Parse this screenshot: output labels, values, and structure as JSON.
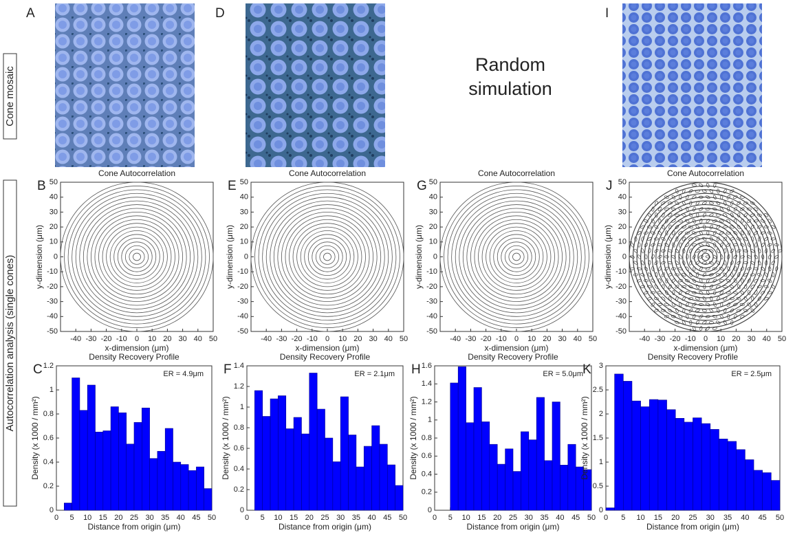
{
  "figure": {
    "row_labels": [
      "Cone mosaic",
      "Autocorrelation analysis (single cones)"
    ],
    "panels": [
      "A",
      "D",
      "I"
    ],
    "random_simulation": [
      "Random",
      "simulation"
    ]
  },
  "chart_data": [
    {
      "type": "autocorrelation",
      "panel_label": "B",
      "title": "Cone Autocorrelation",
      "xlabel": "x-dimension (μm)",
      "ylabel": "y-dimension (μm)",
      "xlim": [
        -50,
        50
      ],
      "ylim": [
        -50,
        50
      ],
      "xticks": [
        -40,
        -30,
        -20,
        -10,
        0,
        10,
        20,
        30,
        40,
        50
      ],
      "yticks": [
        -50,
        -40,
        -30,
        -20,
        -10,
        0,
        10,
        20,
        30,
        40,
        50
      ]
    },
    {
      "type": "autocorrelation",
      "panel_label": "E",
      "title": "Cone Autocorrelation",
      "xlabel": "x-dimension (μm)",
      "ylabel": "y-dimension (μm)",
      "xlim": [
        -50,
        50
      ],
      "ylim": [
        -50,
        50
      ],
      "xticks": [
        -40,
        -30,
        -20,
        -10,
        0,
        10,
        20,
        30,
        40,
        50
      ],
      "yticks": [
        -50,
        -40,
        -30,
        -20,
        -10,
        0,
        10,
        20,
        30,
        40,
        50
      ]
    },
    {
      "type": "autocorrelation",
      "panel_label": "G",
      "title": "Cone Autocorrelation",
      "xlabel": "x-dimension (μm)",
      "ylabel": "y-dimension (μm)",
      "xlim": [
        -50,
        50
      ],
      "ylim": [
        -50,
        50
      ],
      "xticks": [
        -40,
        -30,
        -20,
        -10,
        0,
        10,
        20,
        30,
        40,
        50
      ],
      "yticks": [
        -50,
        -40,
        -30,
        -20,
        -10,
        0,
        10,
        20,
        30,
        40,
        50
      ]
    },
    {
      "type": "autocorrelation",
      "panel_label": "J",
      "title": "Cone Autocorrelation",
      "xlabel": "x-dimension (μm)",
      "ylabel": "y-dimension (μm)",
      "xlim": [
        -50,
        50
      ],
      "ylim": [
        -50,
        50
      ],
      "xticks": [
        -40,
        -30,
        -20,
        -10,
        0,
        10,
        20,
        30,
        40,
        50
      ],
      "yticks": [
        -50,
        -40,
        -30,
        -20,
        -10,
        0,
        10,
        20,
        30,
        40,
        50
      ]
    },
    {
      "type": "histogram",
      "panel_label": "C",
      "title": "Density Recovery Profile",
      "annotation": "ER = 4.9μm",
      "xlabel": "Distance from origin (μm)",
      "ylabel": "Density (x 1000 / mm²)",
      "color": "#0000ff",
      "xlim": [
        0,
        50
      ],
      "ylim": [
        0,
        1.2
      ],
      "xticks": [
        0,
        5,
        10,
        15,
        20,
        25,
        30,
        35,
        40,
        45,
        50
      ],
      "yticks": [
        0,
        0.2,
        0.4,
        0.6,
        0.8,
        1,
        1.2
      ],
      "bins": [
        0,
        2.5,
        5,
        7.5,
        10,
        12.5,
        15,
        17.5,
        20,
        22.5,
        25,
        27.5,
        30,
        32.5,
        35,
        37.5,
        40,
        42.5,
        45,
        47.5,
        50
      ],
      "values": [
        0,
        0.06,
        1.1,
        0.83,
        1.04,
        0.65,
        0.66,
        0.86,
        0.81,
        0.55,
        0.73,
        0.85,
        0.43,
        0.49,
        0.68,
        0.4,
        0.38,
        0.33,
        0.36,
        0.18
      ]
    },
    {
      "type": "histogram",
      "panel_label": "F",
      "title": "Density Recovery Profile",
      "annotation": "ER = 2.1μm",
      "xlabel": "Distance from origin (μm)",
      "ylabel": "Density (x 1000 / mm²)",
      "color": "#0000ff",
      "xlim": [
        0,
        50
      ],
      "ylim": [
        0,
        1.4
      ],
      "xticks": [
        0,
        5,
        10,
        15,
        20,
        25,
        30,
        35,
        40,
        45,
        50
      ],
      "yticks": [
        0,
        0.2,
        0.4,
        0.6,
        0.8,
        1,
        1.2,
        1.4
      ],
      "bins": [
        0,
        2.5,
        5,
        7.5,
        10,
        12.5,
        15,
        17.5,
        20,
        22.5,
        25,
        27.5,
        30,
        32.5,
        35,
        37.5,
        40,
        42.5,
        45,
        47.5,
        50
      ],
      "values": [
        0,
        1.16,
        0.91,
        1.08,
        1.11,
        0.79,
        0.9,
        0.74,
        1.33,
        0.98,
        0.7,
        0.47,
        1.1,
        0.73,
        0.42,
        0.62,
        0.82,
        0.64,
        0.44,
        0.24
      ]
    },
    {
      "type": "histogram",
      "panel_label": "H",
      "title": "Density Recovery Profile",
      "annotation": "ER = 5.0μm",
      "xlabel": "Distance from origin (μm)",
      "ylabel": "Density (x 1000 / mm²)",
      "color": "#0000ff",
      "xlim": [
        0,
        50
      ],
      "ylim": [
        0,
        1.6
      ],
      "xticks": [
        0,
        5,
        10,
        15,
        20,
        25,
        30,
        35,
        40,
        45,
        50
      ],
      "yticks": [
        0,
        0.2,
        0.4,
        0.6,
        0.8,
        1,
        1.2,
        1.4,
        1.6
      ],
      "bins": [
        0,
        2.5,
        5,
        7.5,
        10,
        12.5,
        15,
        17.5,
        20,
        22.5,
        25,
        27.5,
        30,
        32.5,
        35,
        37.5,
        40,
        42.5,
        45,
        47.5,
        50
      ],
      "values": [
        0,
        0,
        1.41,
        1.59,
        0.97,
        1.36,
        0.98,
        0.73,
        0.51,
        0.68,
        0.43,
        0.87,
        0.78,
        1.25,
        0.55,
        1.2,
        0.5,
        0.73,
        0.48,
        0.45
      ]
    },
    {
      "type": "histogram",
      "panel_label": "K",
      "title": "Density Recovery Profile",
      "annotation": "ER = 2.5μm",
      "xlabel": "Distance from origin (μm)",
      "ylabel": "Density (x 1000 / mm²)",
      "color": "#0000ff",
      "xlim": [
        0,
        50
      ],
      "ylim": [
        0,
        3
      ],
      "xticks": [
        0,
        5,
        10,
        15,
        20,
        25,
        30,
        35,
        40,
        45,
        50
      ],
      "yticks": [
        0,
        0.5,
        1,
        1.5,
        2,
        2.5,
        3
      ],
      "bins": [
        0,
        2.5,
        5,
        7.5,
        10,
        12.5,
        15,
        17.5,
        20,
        22.5,
        25,
        27.5,
        30,
        32.5,
        35,
        37.5,
        40,
        42.5,
        45,
        47.5,
        50
      ],
      "values": [
        0.05,
        2.83,
        2.68,
        2.27,
        2.15,
        2.3,
        2.29,
        2.09,
        1.91,
        1.83,
        1.92,
        1.8,
        1.68,
        1.48,
        1.43,
        1.26,
        1.05,
        0.83,
        0.78,
        0.62
      ]
    }
  ]
}
